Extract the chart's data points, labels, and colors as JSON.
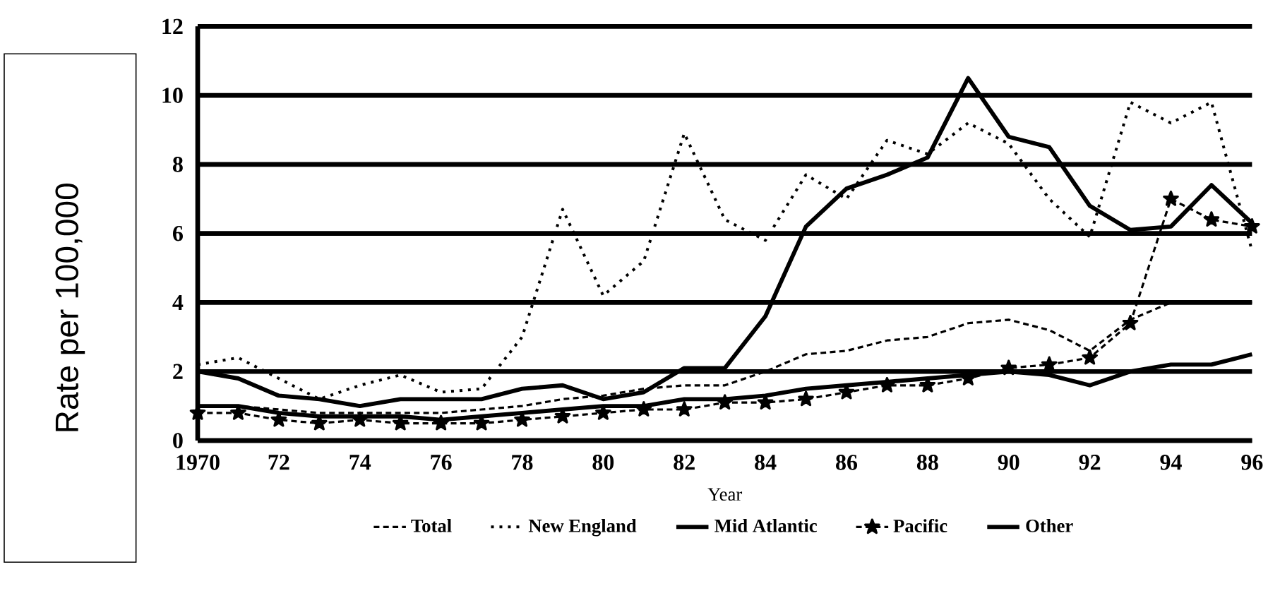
{
  "chart_data": {
    "type": "line",
    "xlabel": "Year",
    "ylabel": "Rate per 100,000",
    "x": [
      1970,
      1971,
      1972,
      1973,
      1974,
      1975,
      1976,
      1977,
      1978,
      1979,
      1980,
      1981,
      1982,
      1983,
      1984,
      1985,
      1986,
      1987,
      1988,
      1989,
      1990,
      1991,
      1992,
      1993,
      1994,
      1995,
      1996
    ],
    "series": [
      {
        "name": "Total",
        "color": "#000000",
        "line_style": "dashed",
        "values": [
          1.0,
          1.0,
          0.9,
          0.8,
          0.8,
          0.8,
          0.8,
          0.9,
          1.0,
          1.2,
          1.3,
          1.5,
          1.6,
          1.6,
          2.0,
          2.5,
          2.6,
          2.9,
          3.0,
          3.4,
          3.5,
          3.2,
          2.6,
          3.5,
          4.0,
          4.0,
          4.0
        ]
      },
      {
        "name": "New England",
        "color": "#000000",
        "line_style": "dotted",
        "values": [
          2.2,
          2.4,
          1.8,
          1.2,
          1.6,
          1.9,
          1.4,
          1.5,
          3.0,
          6.7,
          4.2,
          5.2,
          8.9,
          6.4,
          5.8,
          7.7,
          7.0,
          8.7,
          8.3,
          9.2,
          8.6,
          7.0,
          5.9,
          9.8,
          9.2,
          9.8,
          5.5
        ]
      },
      {
        "name": "Mid Atlantic",
        "color": "#000000",
        "line_style": "solid",
        "values": [
          2.0,
          1.8,
          1.3,
          1.2,
          1.0,
          1.2,
          1.2,
          1.2,
          1.5,
          1.6,
          1.2,
          1.4,
          2.1,
          2.1,
          3.6,
          6.2,
          7.3,
          7.7,
          8.2,
          10.5,
          8.8,
          8.5,
          6.8,
          6.1,
          6.2,
          7.4,
          6.3
        ]
      },
      {
        "name": "Pacific",
        "color": "#000000",
        "line_style": "dashed",
        "marker": "star",
        "values": [
          0.8,
          0.8,
          0.6,
          0.5,
          0.6,
          0.5,
          0.5,
          0.5,
          0.6,
          0.7,
          0.8,
          0.9,
          0.9,
          1.1,
          1.1,
          1.2,
          1.4,
          1.6,
          1.6,
          1.8,
          2.1,
          2.2,
          2.4,
          3.4,
          7.0,
          6.4,
          6.2
        ]
      },
      {
        "name": "Other",
        "color": "#000000",
        "line_style": "solid",
        "values": [
          1.0,
          1.0,
          0.8,
          0.7,
          0.7,
          0.7,
          0.6,
          0.7,
          0.8,
          0.9,
          1.0,
          1.0,
          1.2,
          1.2,
          1.3,
          1.5,
          1.6,
          1.7,
          1.8,
          1.9,
          2.0,
          1.9,
          1.6,
          2.0,
          2.2,
          2.2,
          2.5
        ]
      }
    ],
    "xlim": [
      1970,
      1996
    ],
    "xticks": [
      {
        "value": 1970,
        "label": "1970"
      },
      {
        "value": 1972,
        "label": "72"
      },
      {
        "value": 1974,
        "label": "74"
      },
      {
        "value": 1976,
        "label": "76"
      },
      {
        "value": 1978,
        "label": "78"
      },
      {
        "value": 1980,
        "label": "80"
      },
      {
        "value": 1982,
        "label": "82"
      },
      {
        "value": 1984,
        "label": "84"
      },
      {
        "value": 1986,
        "label": "86"
      },
      {
        "value": 1988,
        "label": "88"
      },
      {
        "value": 1990,
        "label": "90"
      },
      {
        "value": 1992,
        "label": "92"
      },
      {
        "value": 1994,
        "label": "94"
      },
      {
        "value": 1996,
        "label": "96"
      }
    ],
    "ylim": [
      0,
      12
    ],
    "yticks": [
      0,
      2,
      4,
      6,
      8,
      10,
      12
    ],
    "grid": "y",
    "legend": "bottom",
    "marker": "none"
  }
}
